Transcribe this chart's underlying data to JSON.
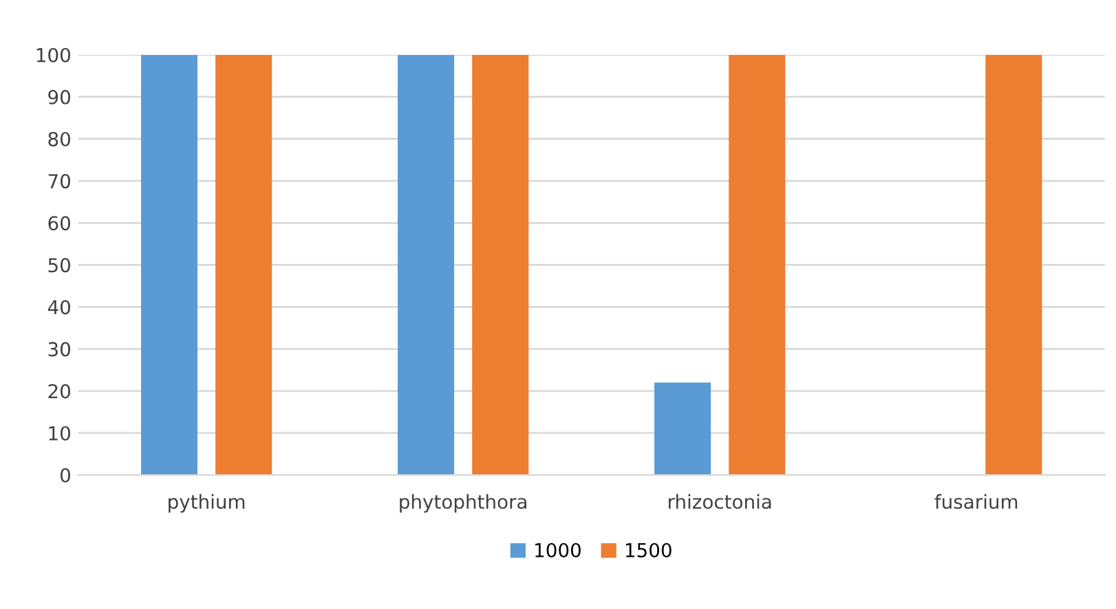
{
  "chart_data": {
    "type": "bar",
    "categories": [
      "pythium",
      "phytophthora",
      "rhizoctonia",
      "fusarium"
    ],
    "series": [
      {
        "name": "1000",
        "color": "#5b9bd5",
        "values": [
          100,
          100,
          22,
          0
        ]
      },
      {
        "name": "1500",
        "color": "#ed7d31",
        "values": [
          100,
          100,
          100,
          100
        ]
      }
    ],
    "ylim": [
      0,
      100
    ],
    "yticks": [
      0,
      10,
      20,
      30,
      40,
      50,
      60,
      70,
      80,
      90,
      100
    ],
    "grid": "y",
    "legend": "bottom"
  }
}
